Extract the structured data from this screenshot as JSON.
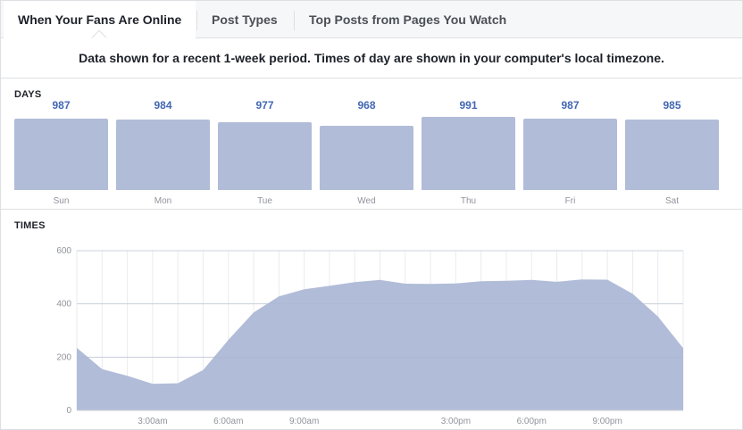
{
  "tabs": [
    {
      "label": "When Your Fans Are Online",
      "active": true
    },
    {
      "label": "Post Types",
      "active": false
    },
    {
      "label": "Top Posts from Pages You Watch",
      "active": false
    }
  ],
  "notice": "Data shown for a recent 1-week period. Times of day are shown in your computer's local timezone.",
  "days_section": {
    "label": "DAYS"
  },
  "times_section": {
    "label": "TIMES"
  },
  "colors": {
    "bar": "#b1bcd8",
    "value_text": "#4267b2",
    "area": "#b1bcd8"
  },
  "chart_data": [
    {
      "type": "bar",
      "categories": [
        "Sun",
        "Mon",
        "Tue",
        "Wed",
        "Thu",
        "Fri",
        "Sat"
      ],
      "values": [
        987,
        984,
        977,
        968,
        991,
        987,
        985
      ],
      "data_labels": [
        "987",
        "984",
        "977",
        "968",
        "991",
        "987",
        "985"
      ],
      "title": "DAYS",
      "xlabel": "",
      "ylabel": ""
    },
    {
      "type": "area",
      "title": "TIMES",
      "x": [
        0,
        1,
        2,
        3,
        4,
        5,
        6,
        7,
        8,
        9,
        10,
        11,
        12,
        13,
        14,
        15,
        16,
        17,
        18,
        19,
        20,
        21,
        22,
        23,
        24
      ],
      "values": [
        235,
        155,
        130,
        100,
        102,
        152,
        265,
        368,
        428,
        455,
        468,
        482,
        490,
        476,
        475,
        477,
        485,
        487,
        490,
        483,
        492,
        491,
        438,
        353,
        234
      ],
      "ylim": [
        0,
        600
      ],
      "yticks": [
        "0",
        "200",
        "400",
        "600"
      ],
      "xticks": [
        {
          "x": 3,
          "label": "3:00am"
        },
        {
          "x": 6,
          "label": "6:00am"
        },
        {
          "x": 9,
          "label": "9:00am"
        },
        {
          "x": 15,
          "label": "3:00pm"
        },
        {
          "x": 18,
          "label": "6:00pm"
        },
        {
          "x": 21,
          "label": "9:00pm"
        }
      ],
      "xlabel": "",
      "ylabel": "",
      "grid": true
    }
  ]
}
